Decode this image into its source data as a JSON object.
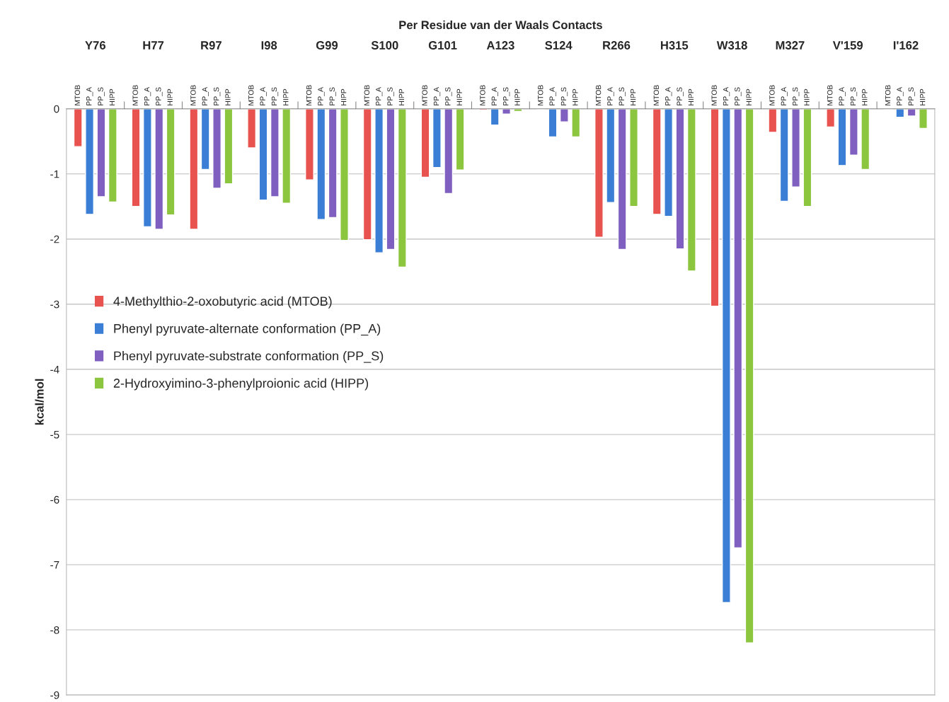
{
  "chart_data": {
    "type": "bar",
    "title": "Per Residue van der Waals Contacts",
    "ylabel": "kcal/mol",
    "categories": [
      "Y76",
      "H77",
      "R97",
      "I98",
      "G99",
      "S100",
      "G101",
      "A123",
      "S124",
      "R266",
      "H315",
      "W318",
      "M327",
      "V'159",
      "I'162"
    ],
    "annotations": [
      "MTOB",
      "PP_A",
      "PP_S",
      "HIPP"
    ],
    "series": [
      {
        "name": "4-Methylthio-2-oxobutyric acid (MTOB)",
        "color": "#e8534f",
        "values": [
          -0.58,
          -1.5,
          -1.85,
          -0.6,
          -1.09,
          -2.01,
          -1.05,
          -0.02,
          -0.01,
          -1.97,
          -1.62,
          -3.03,
          -0.36,
          -0.28,
          -0.01
        ]
      },
      {
        "name": "Phenyl pyruvate-alternate conformation (PP_A)",
        "color": "#3a7fd5",
        "values": [
          -1.62,
          -1.81,
          -0.93,
          -1.4,
          -1.7,
          -2.21,
          -0.9,
          -0.25,
          -0.43,
          -1.44,
          -1.65,
          -7.58,
          -1.42,
          -0.87,
          -0.13
        ]
      },
      {
        "name": "Phenyl pyruvate-substrate conformation (PP_S)",
        "color": "#7f5fbf",
        "values": [
          -1.35,
          -1.85,
          -1.22,
          -1.35,
          -1.67,
          -2.16,
          -1.3,
          -0.08,
          -0.2,
          -2.16,
          -2.15,
          -6.74,
          -1.2,
          -0.71,
          -0.11
        ]
      },
      {
        "name": "2-Hydroxyimino-3-phenylproionic acid (HIPP)",
        "color": "#8cc63f",
        "values": [
          -1.43,
          -1.63,
          -1.15,
          -1.45,
          -2.02,
          -2.43,
          -0.94,
          -0.04,
          -0.43,
          -1.5,
          -2.49,
          -8.2,
          -1.5,
          -0.93,
          -0.3
        ]
      }
    ],
    "ylim": [
      -9,
      0
    ],
    "yticks": [
      -9,
      -8,
      -7,
      -6,
      -5,
      -4,
      -3,
      -2,
      -1,
      0
    ],
    "grid": "y",
    "legend": "left"
  }
}
